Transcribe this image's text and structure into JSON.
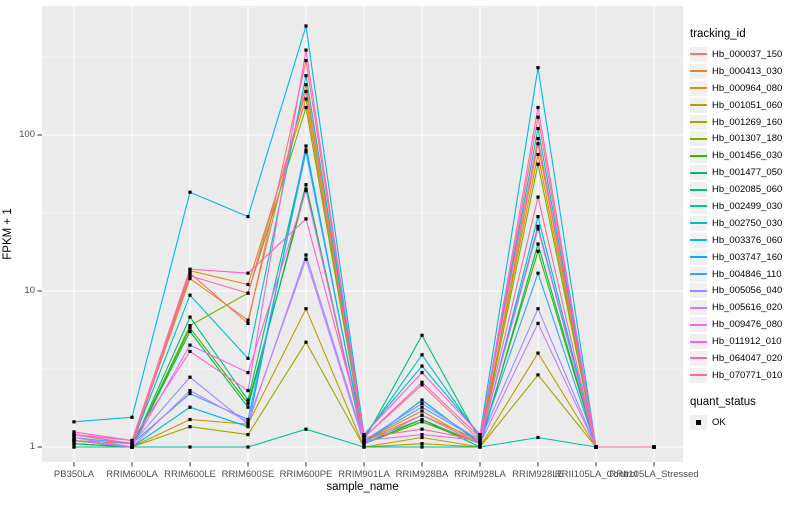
{
  "chart_data": {
    "type": "line",
    "title": "",
    "xlabel": "sample_name",
    "ylabel": "FPKM + 1",
    "y_scale": "log10",
    "grid": true,
    "legend_position": "right",
    "panel_bg": "#EBEBEB",
    "grid_color": "#FFFFFF",
    "marker": {
      "shape": "filled-square",
      "color": "#000000",
      "size": 3.2,
      "meaning": "quant_status OK"
    },
    "y_ticks": [
      1,
      10,
      100
    ],
    "y_tick_labels": [
      "1",
      "10",
      "100"
    ],
    "y_minor_ticks": [
      3.1623,
      31.623,
      316.23
    ],
    "ylim_log10": [
      -0.12,
      2.83
    ],
    "x_categories": [
      "PB350LA",
      "RRIM600LA",
      "RRIM600LE",
      "RRIM600SE",
      "RRIM600PE",
      "RRIM901LA",
      "RRIM928BA",
      "RRIM928LA",
      "RRIM928LE",
      "RRII105LA_Control",
      "RRII105LA_Stressed"
    ],
    "series": [
      {
        "name": "Hb_000037_150",
        "color": "#F8766D",
        "values": [
          1.2,
          1.05,
          13.0,
          6.2,
          300,
          1.15,
          2.5,
          1.1,
          130,
          1.0,
          1.0
        ]
      },
      {
        "name": "Hb_000413_030",
        "color": "#EA8331",
        "values": [
          1.1,
          1.05,
          12.0,
          6.5,
          210,
          1.1,
          1.7,
          1.05,
          88,
          1.0,
          1.0
        ]
      },
      {
        "name": "Hb_000964_080",
        "color": "#D89000",
        "values": [
          1.15,
          1.0,
          13.5,
          11.0,
          170,
          1.1,
          1.6,
          1.1,
          75,
          1.0,
          1.0
        ]
      },
      {
        "name": "Hb_001051_060",
        "color": "#C09B00",
        "values": [
          1.05,
          1.0,
          1.5,
          1.4,
          7.7,
          1.0,
          1.15,
          1.0,
          4.0,
          1.0,
          1.0
        ]
      },
      {
        "name": "Hb_001269_160",
        "color": "#A3A500",
        "values": [
          1.0,
          1.0,
          1.35,
          1.2,
          4.7,
          1.0,
          1.05,
          1.0,
          2.9,
          1.0,
          1.0
        ]
      },
      {
        "name": "Hb_001307_180",
        "color": "#7CAE00",
        "values": [
          1.1,
          1.0,
          6.0,
          9.7,
          150,
          1.1,
          1.5,
          1.05,
          65,
          1.0,
          1.0
        ]
      },
      {
        "name": "Hb_001456_030",
        "color": "#39B600",
        "values": [
          1.1,
          1.0,
          5.8,
          1.9,
          45,
          1.05,
          1.45,
          1.05,
          18,
          1.0,
          1.0
        ]
      },
      {
        "name": "Hb_001477_050",
        "color": "#00BB4E",
        "values": [
          1.05,
          1.0,
          5.5,
          1.8,
          48,
          1.05,
          1.5,
          1.0,
          20,
          1.0,
          1.0
        ]
      },
      {
        "name": "Hb_002085_060",
        "color": "#00BF7D",
        "values": [
          1.1,
          1.0,
          6.8,
          2.0,
          80,
          1.1,
          5.2,
          1.1,
          26,
          1.0,
          1.0
        ]
      },
      {
        "name": "Hb_002499_030",
        "color": "#00C1A3",
        "values": [
          1.0,
          1.0,
          1.0,
          1.0,
          1.3,
          1.0,
          1.0,
          1.0,
          1.15,
          1.0,
          1.0
        ]
      },
      {
        "name": "Hb_002750_030",
        "color": "#00BFC4",
        "values": [
          1.2,
          1.05,
          9.4,
          3.7,
          240,
          1.15,
          3.9,
          1.15,
          110,
          1.0,
          1.0
        ]
      },
      {
        "name": "Hb_003376_060",
        "color": "#00BAE0",
        "values": [
          1.45,
          1.55,
          43.0,
          30.0,
          500,
          1.2,
          3.3,
          1.2,
          270,
          1.0,
          1.0
        ]
      },
      {
        "name": "Hb_003747_160",
        "color": "#00B0F6",
        "values": [
          1.1,
          1.0,
          1.8,
          1.35,
          85,
          1.05,
          2.0,
          1.05,
          30,
          1.0,
          1.0
        ]
      },
      {
        "name": "Hb_004846_110",
        "color": "#35A2FF",
        "values": [
          1.15,
          1.05,
          2.2,
          1.5,
          78,
          1.1,
          1.8,
          1.1,
          13,
          1.0,
          1.0
        ]
      },
      {
        "name": "Hb_005056_040",
        "color": "#9590FF",
        "values": [
          1.2,
          1.05,
          2.8,
          1.4,
          17,
          1.1,
          1.9,
          1.1,
          7.7,
          1.0,
          1.0
        ]
      },
      {
        "name": "Hb_005616_020",
        "color": "#C77CFF",
        "values": [
          1.15,
          1.0,
          2.3,
          1.45,
          16,
          1.05,
          1.6,
          1.05,
          6.2,
          1.0,
          1.0
        ]
      },
      {
        "name": "Hb_009476_080",
        "color": "#E76BF3",
        "values": [
          1.1,
          1.0,
          4.5,
          3.0,
          44,
          1.1,
          1.2,
          1.1,
          25,
          1.0,
          1.0
        ]
      },
      {
        "name": "Hb_011912_010",
        "color": "#FA62DB",
        "values": [
          1.2,
          1.1,
          4.1,
          2.3,
          350,
          1.15,
          2.6,
          1.15,
          150,
          1.0,
          1.0
        ]
      },
      {
        "name": "Hb_064047_020",
        "color": "#FF61C3",
        "values": [
          1.25,
          1.1,
          13.8,
          13.0,
          29,
          1.2,
          3.0,
          1.2,
          95,
          1.0,
          1.0
        ]
      },
      {
        "name": "Hb_070771_010",
        "color": "#FF6A98",
        "values": [
          1.2,
          1.05,
          12.5,
          9.7,
          190,
          1.15,
          1.3,
          1.1,
          40,
          1.0,
          1.0
        ]
      }
    ]
  },
  "legend": {
    "color_title": "tracking_id",
    "shape_title": "quant_status",
    "shape_items": [
      {
        "label": "OK",
        "swatch": "black-square"
      }
    ],
    "key_bg": "#F0F0F0"
  }
}
